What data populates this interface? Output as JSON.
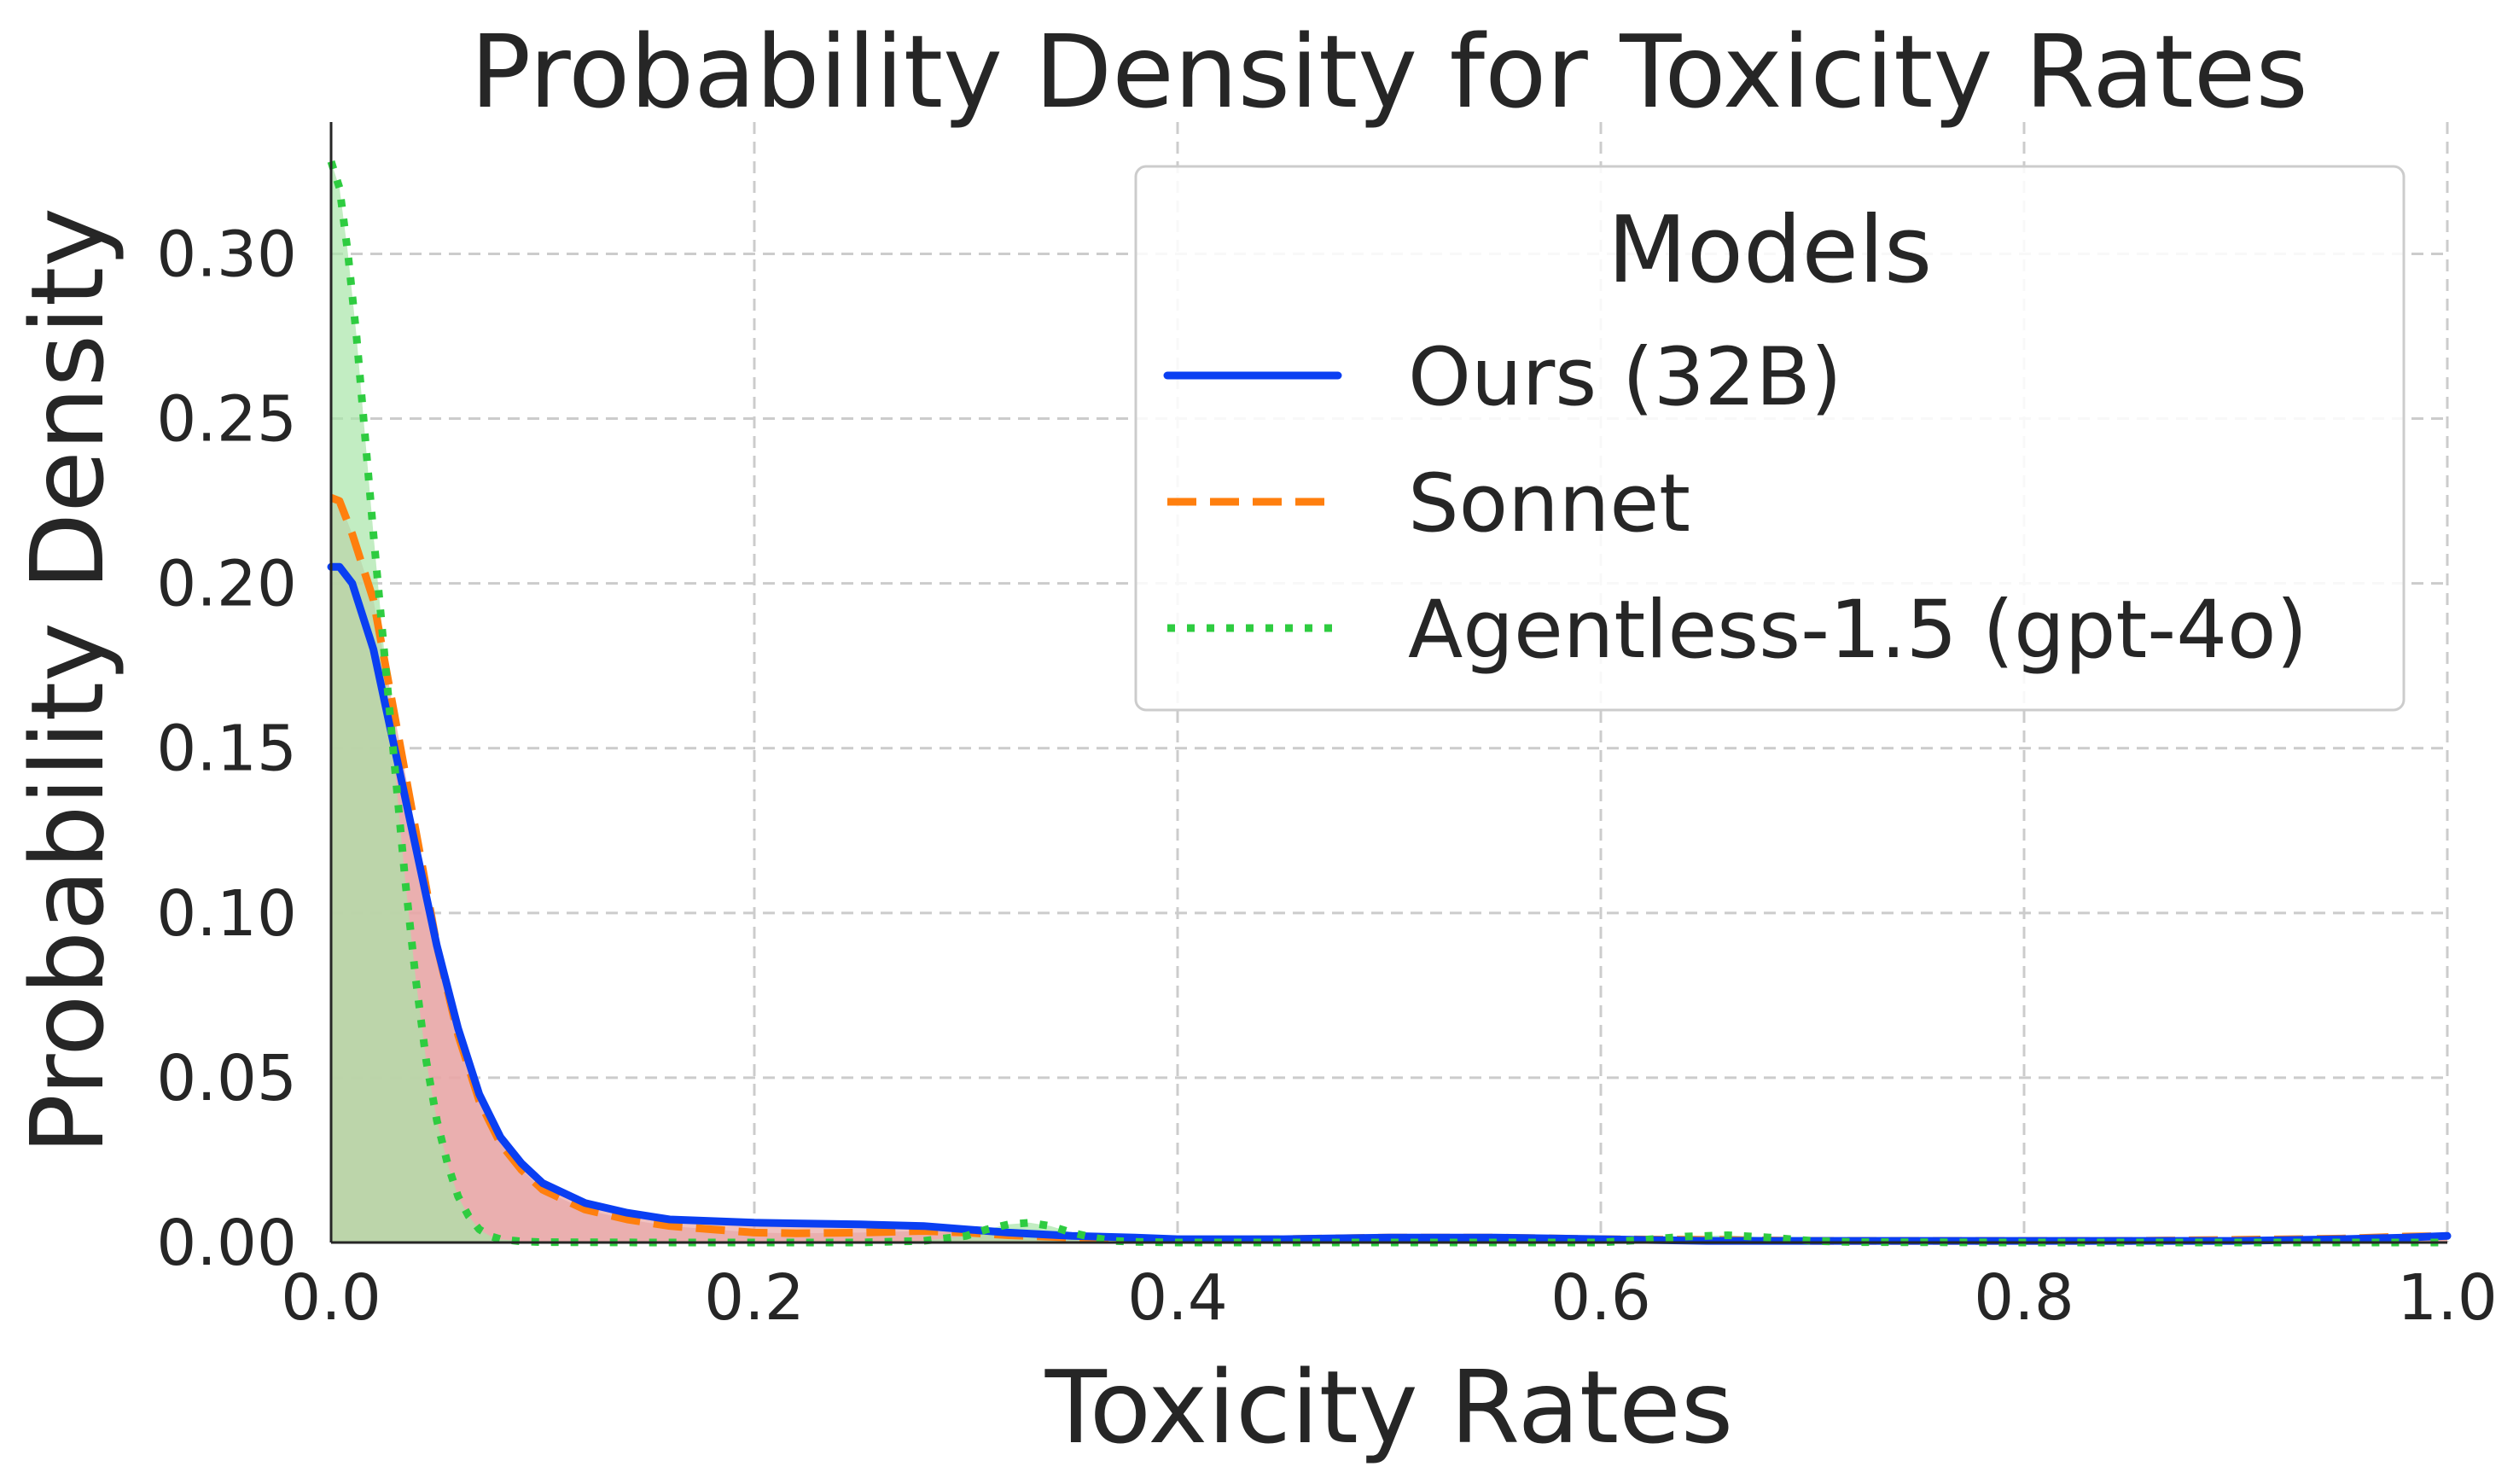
{
  "chart_data": {
    "type": "area",
    "title": "Probability Density for Toxicity Rates",
    "xlabel": "Toxicity Rates",
    "ylabel": "Probability Density",
    "xlim": [
      0,
      1
    ],
    "ylim": [
      0,
      0.34
    ],
    "grid": true,
    "legend": {
      "title": "Models",
      "placement": "top-right"
    },
    "x_ticks": [
      "0.0",
      "0.2",
      "0.4",
      "0.6",
      "0.8",
      "1.0"
    ],
    "y_ticks": [
      "0.00",
      "0.05",
      "0.10",
      "0.15",
      "0.20",
      "0.25",
      "0.30"
    ],
    "series": [
      {
        "name": "Ours (32B)",
        "color": "#0a3ff2",
        "fill": "#e8a6a6",
        "line_style": "solid",
        "x": [
          0,
          0.004,
          0.01,
          0.02,
          0.03,
          0.04,
          0.05,
          0.06,
          0.07,
          0.08,
          0.09,
          0.1,
          0.12,
          0.14,
          0.16,
          0.18,
          0.2,
          0.22,
          0.25,
          0.28,
          0.3,
          0.32,
          0.35,
          0.38,
          0.4,
          0.45,
          0.5,
          0.55,
          0.6,
          0.65,
          0.7,
          0.75,
          0.8,
          0.85,
          0.9,
          0.95,
          0.98,
          1.0
        ],
        "y": [
          0.205,
          0.205,
          0.2,
          0.18,
          0.15,
          0.12,
          0.09,
          0.065,
          0.045,
          0.032,
          0.024,
          0.018,
          0.012,
          0.009,
          0.007,
          0.0065,
          0.006,
          0.0058,
          0.0055,
          0.005,
          0.004,
          0.003,
          0.002,
          0.0015,
          0.001,
          0.001,
          0.0015,
          0.0015,
          0.001,
          0.0005,
          0.0005,
          0.0005,
          0.0005,
          0.0005,
          0.0005,
          0.001,
          0.0015,
          0.002
        ]
      },
      {
        "name": "Sonnet",
        "color": "#ff7f0e",
        "fill": "#e8a6a6",
        "line_style": "dashed",
        "x": [
          0,
          0.004,
          0.01,
          0.02,
          0.03,
          0.04,
          0.05,
          0.06,
          0.07,
          0.08,
          0.09,
          0.1,
          0.12,
          0.14,
          0.16,
          0.18,
          0.2,
          0.22,
          0.25,
          0.28,
          0.3,
          0.32,
          0.35,
          0.38,
          0.4,
          0.45,
          0.5,
          0.55,
          0.6,
          0.65,
          0.7,
          0.75,
          0.8,
          0.85,
          0.9,
          0.95,
          0.98,
          1.0
        ],
        "y": [
          0.226,
          0.225,
          0.215,
          0.195,
          0.16,
          0.125,
          0.09,
          0.063,
          0.043,
          0.03,
          0.022,
          0.016,
          0.01,
          0.007,
          0.005,
          0.004,
          0.003,
          0.0028,
          0.003,
          0.0035,
          0.003,
          0.0022,
          0.0015,
          0.001,
          0.0008,
          0.001,
          0.0015,
          0.0015,
          0.001,
          0.0008,
          0.0005,
          0.0005,
          0.0005,
          0.0005,
          0.0008,
          0.0012,
          0.0018,
          0.002
        ]
      },
      {
        "name": "Agentless-1.5 (gpt-4o)",
        "color": "#2ecc40",
        "fill": "#a8e6a8",
        "line_style": "dotted",
        "x": [
          0,
          0.004,
          0.008,
          0.012,
          0.016,
          0.02,
          0.025,
          0.03,
          0.035,
          0.04,
          0.045,
          0.05,
          0.055,
          0.06,
          0.065,
          0.07,
          0.075,
          0.08,
          0.09,
          0.1,
          0.15,
          0.2,
          0.25,
          0.28,
          0.3,
          0.31,
          0.32,
          0.33,
          0.34,
          0.35,
          0.36,
          0.37,
          0.38,
          0.4,
          0.5,
          0.6,
          0.62,
          0.64,
          0.66,
          0.68,
          0.7,
          0.72,
          0.8,
          0.9,
          1.0
        ],
        "y": [
          0.328,
          0.32,
          0.3,
          0.275,
          0.245,
          0.215,
          0.18,
          0.145,
          0.11,
          0.08,
          0.055,
          0.037,
          0.024,
          0.014,
          0.008,
          0.004,
          0.002,
          0.001,
          0.0003,
          0.0001,
          0,
          0,
          0,
          0.0005,
          0.002,
          0.004,
          0.0055,
          0.006,
          0.005,
          0.003,
          0.0015,
          0.0005,
          0.0002,
          0,
          0,
          0,
          0.0008,
          0.0018,
          0.0022,
          0.0015,
          0.0005,
          0.0001,
          0,
          0,
          0
        ]
      }
    ]
  }
}
